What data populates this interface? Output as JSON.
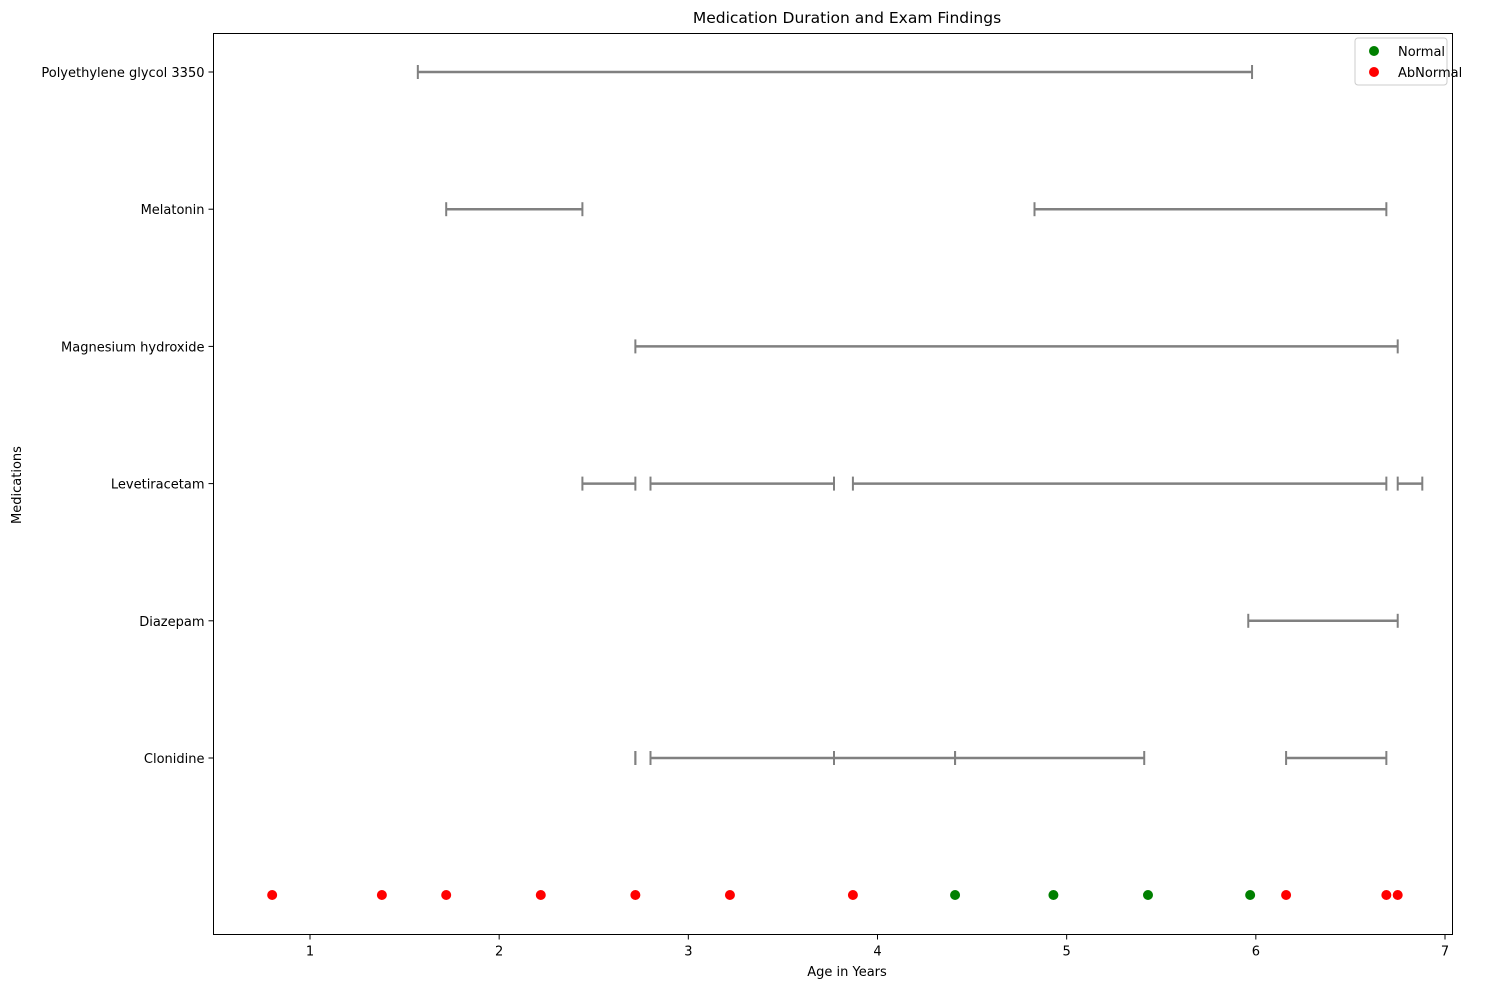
{
  "chart_data": {
    "type": "scatter",
    "title": "Medication Duration and Exam Findings",
    "xlabel": "Age in Years",
    "ylabel": "Medications",
    "xlim": [
      0.48,
      7.04
    ],
    "xticks": [
      1,
      2,
      3,
      4,
      5,
      6,
      7
    ],
    "grid": false,
    "legend_position": "top-right",
    "medications": [
      {
        "name": "Clonidine",
        "intervals": [
          [
            2.72,
            2.72
          ],
          [
            2.8,
            3.77
          ],
          [
            3.77,
            4.41
          ],
          [
            4.41,
            5.41
          ],
          [
            6.16,
            6.69
          ]
        ]
      },
      {
        "name": "Diazepam",
        "intervals": [
          [
            5.96,
            6.75
          ]
        ]
      },
      {
        "name": "Levetiracetam",
        "intervals": [
          [
            2.44,
            2.72
          ],
          [
            2.8,
            3.77
          ],
          [
            3.87,
            6.69
          ],
          [
            6.75,
            6.88
          ]
        ]
      },
      {
        "name": "Magnesium hydroxide",
        "intervals": [
          [
            2.72,
            6.75
          ]
        ]
      },
      {
        "name": "Melatonin",
        "intervals": [
          [
            1.72,
            2.44
          ],
          [
            4.83,
            6.69
          ]
        ]
      },
      {
        "name": "Polyethylene glycol 3350",
        "intervals": [
          [
            1.57,
            5.98
          ]
        ]
      }
    ],
    "series": [
      {
        "name": "Normal",
        "color": "#008000",
        "x": [
          4.41,
          4.93,
          5.43,
          5.97
        ]
      },
      {
        "name": "AbNormal",
        "color": "#ff0000",
        "x": [
          0.8,
          1.38,
          1.72,
          2.22,
          2.72,
          3.22,
          3.87,
          6.16,
          6.69,
          6.75
        ]
      }
    ],
    "interval_color": "#808080"
  }
}
